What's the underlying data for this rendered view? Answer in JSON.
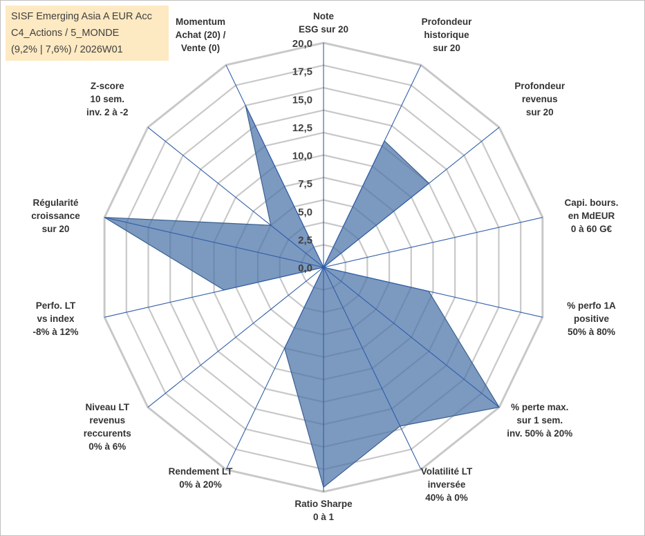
{
  "info_box": {
    "line1": "SISF Emerging Asia A EUR Acc",
    "line2": "C4_Actions / 5_MONDE",
    "line3": "(9,2% | 7,6%) / 2026W01"
  },
  "chart_data": {
    "type": "radar",
    "title": "",
    "rlim": [
      0,
      20
    ],
    "ticks": [
      "0,0",
      "2,5",
      "5,0",
      "7,5",
      "10,0",
      "12,5",
      "15,0",
      "17,5",
      "20,0"
    ],
    "tick_values": [
      0,
      2.5,
      5,
      7.5,
      10,
      12.5,
      15,
      17.5,
      20
    ],
    "grid_rings": 10,
    "axes": [
      [
        "Note",
        "ESG sur 20"
      ],
      [
        "Profondeur",
        "historique",
        "sur 20"
      ],
      [
        "Profondeur",
        "revenus",
        "sur 20"
      ],
      [
        "Capi. bours.",
        "en MdEUR",
        "0 à 60 G€"
      ],
      [
        "% perfo 1A",
        "positive",
        "50% à 80%"
      ],
      [
        "% perte max.",
        "sur 1 sem.",
        "inv. 50% à 20%"
      ],
      [
        "Volatilité LT",
        "inversée",
        "40% à 0%"
      ],
      [
        "Ratio Sharpe",
        "0 à 1"
      ],
      [
        "Rendement LT",
        "0% à 20%"
      ],
      [
        "Niveau LT",
        "revenus",
        "reccurents",
        "0% à 6%"
      ],
      [
        "Perfo. LT",
        "vs index",
        "-8% à 12%"
      ],
      [
        "Régularité",
        "croissance",
        "sur 20"
      ],
      [
        "Z-score",
        "10 sem.",
        "inv. 2 à -2"
      ],
      [
        "Momentum",
        "Achat (20) /",
        "Vente (0)"
      ]
    ],
    "series": [
      {
        "name": "SISF Emerging Asia A EUR Acc",
        "values": [
          0,
          12.5,
          12.0,
          0,
          9.6,
          20.0,
          15.7,
          19.6,
          8.0,
          0,
          9.1,
          20.0,
          6.0,
          16.0
        ],
        "color": "#4a72a8",
        "fill_opacity": 0.72
      }
    ]
  }
}
